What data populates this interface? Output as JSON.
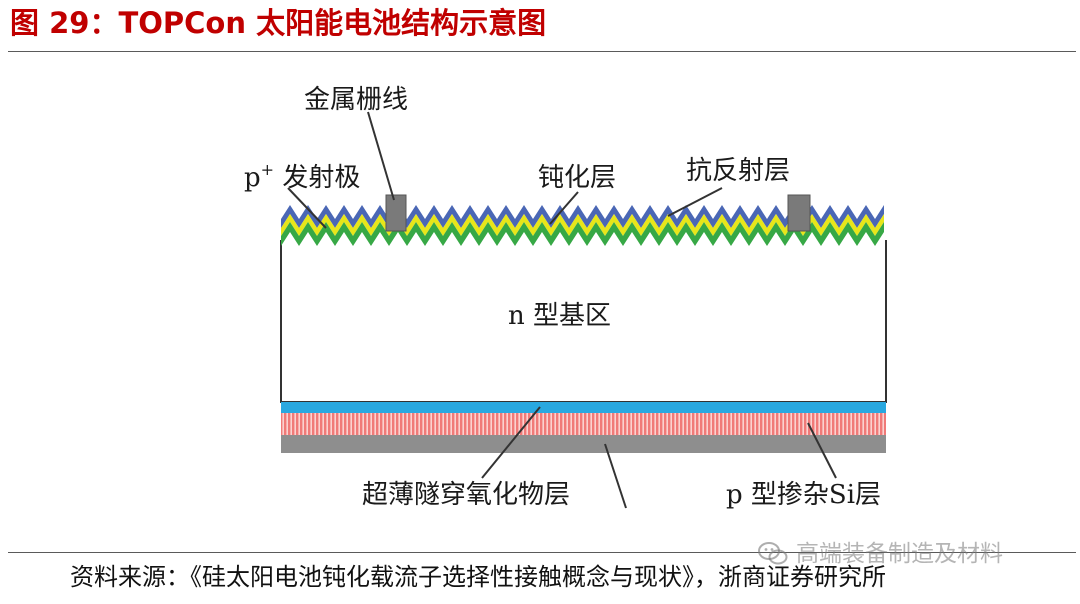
{
  "header": {
    "title": "图 29：TOPCon 太阳能电池结构示意图"
  },
  "diagram": {
    "labels": {
      "metal_grid": "金属栅线",
      "p_plus_emitter_base": "p",
      "p_plus_emitter_sup": "+",
      "p_plus_emitter_text": " 发射极",
      "passivation": "钝化层",
      "anti_reflection": "抗反射层",
      "n_substrate": "n 型基区",
      "tunnel_oxide": "超薄隧穿氧化物层",
      "p_doped_si": "p 型掺杂Si层"
    },
    "colors": {
      "anti_reflection_layer": "#4a67b5",
      "passivation_layer": "#e8e61a",
      "emitter_layer": "#37a845",
      "metal_contact": "#7a7a7a",
      "tunnel_oxide_layer": "#29a8e0",
      "doped_poly_si_layer": "#f07a78",
      "rear_metal_layer": "#8e8e8e",
      "substrate_outline": "#333333"
    }
  },
  "footer": {
    "source": "资料来源：《硅太阳电池钝化载流子选择性接触概念与现状》，浙商证券研究所",
    "watermark": "高端装备制造及材料"
  }
}
